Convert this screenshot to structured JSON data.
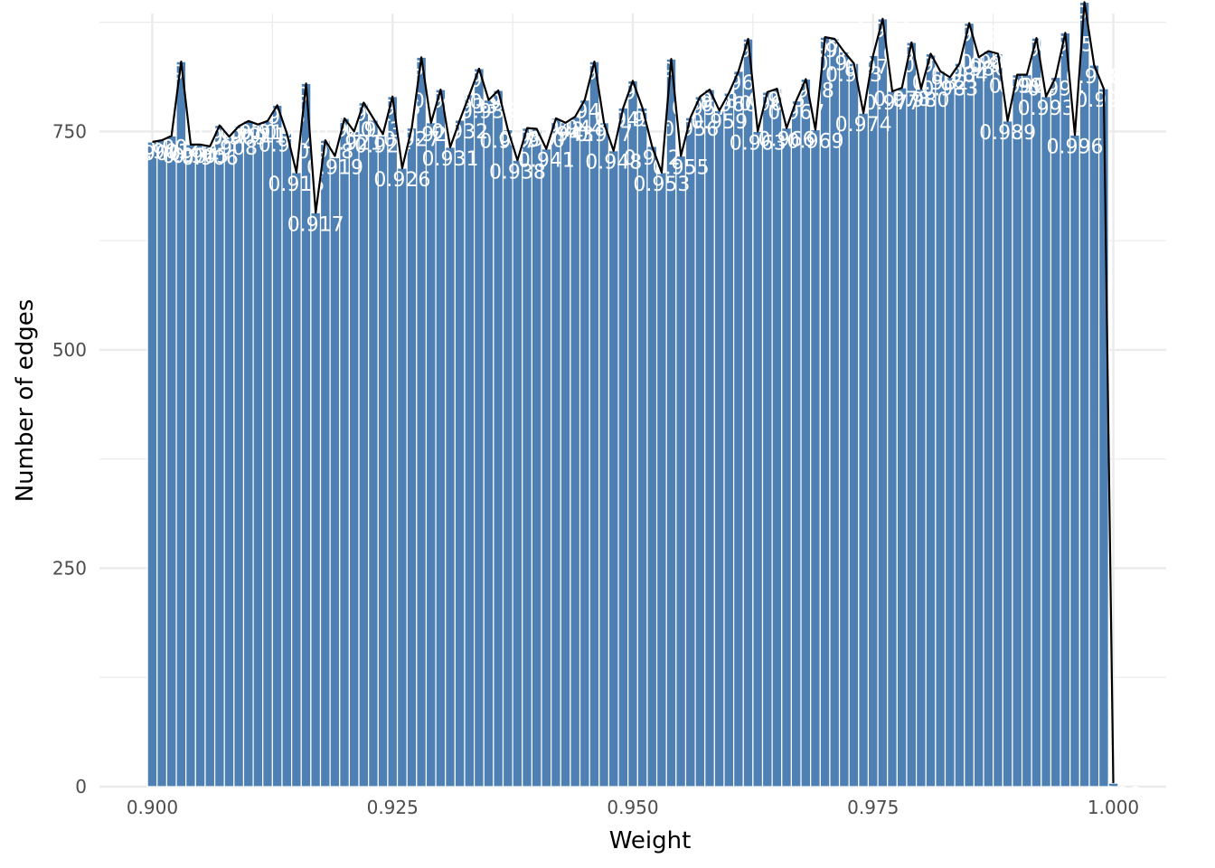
{
  "chart_data": {
    "type": "bar",
    "title": "",
    "xlabel": "Weight",
    "ylabel": "Number of edges",
    "xlim": [
      0.8945,
      1.0055
    ],
    "ylim": [
      0,
      885
    ],
    "grid": true,
    "legend": "none",
    "bar_color": "#4e80b4",
    "line_color": "#000000",
    "x_ticks": [
      0.9,
      0.925,
      0.95,
      0.975,
      1.0
    ],
    "x_tick_labels": [
      "0.900",
      "0.925",
      "0.950",
      "0.975",
      "1.000"
    ],
    "y_ticks": [
      0,
      250,
      500,
      750
    ],
    "y_tick_labels": [
      "0",
      "250",
      "500",
      "750"
    ],
    "bin_width": 0.0005,
    "x": [
      0.9,
      0.901,
      0.902,
      0.903,
      0.904,
      0.905,
      0.906,
      0.907,
      0.908,
      0.909,
      0.91,
      0.911,
      0.912,
      0.913,
      0.914,
      0.915,
      0.916,
      0.917,
      0.918,
      0.919,
      0.92,
      0.921,
      0.922,
      0.923,
      0.924,
      0.925,
      0.926,
      0.927,
      0.928,
      0.929,
      0.93,
      0.931,
      0.932,
      0.933,
      0.934,
      0.935,
      0.936,
      0.937,
      0.938,
      0.939,
      0.94,
      0.941,
      0.942,
      0.943,
      0.944,
      0.945,
      0.946,
      0.947,
      0.948,
      0.949,
      0.95,
      0.951,
      0.952,
      0.953,
      0.954,
      0.955,
      0.956,
      0.957,
      0.958,
      0.959,
      0.96,
      0.961,
      0.962,
      0.963,
      0.964,
      0.965,
      0.966,
      0.967,
      0.968,
      0.969,
      0.97,
      0.971,
      0.972,
      0.973,
      0.974,
      0.975,
      0.976,
      0.977,
      0.978,
      0.979,
      0.98,
      0.981,
      0.982,
      0.983,
      0.984,
      0.985,
      0.986,
      0.987,
      0.988,
      0.989,
      0.99,
      0.991,
      0.992,
      0.993,
      0.994,
      0.995,
      0.996,
      0.997,
      0.998,
      0.999,
      1.0
    ],
    "values": [
      738,
      740,
      745,
      830,
      735,
      735,
      733,
      757,
      744,
      756,
      762,
      758,
      762,
      780,
      748,
      703,
      805,
      657,
      740,
      722,
      765,
      750,
      783,
      765,
      747,
      790,
      708,
      754,
      835,
      760,
      798,
      732,
      763,
      792,
      822,
      786,
      797,
      752,
      717,
      754,
      753,
      730,
      765,
      760,
      767,
      786,
      830,
      760,
      728,
      777,
      808,
      777,
      733,
      703,
      833,
      722,
      766,
      790,
      798,
      774,
      794,
      819,
      856,
      750,
      795,
      799,
      754,
      785,
      810,
      752,
      858,
      856,
      841,
      828,
      771,
      837,
      879,
      796,
      800,
      852,
      799,
      839,
      819,
      812,
      828,
      874,
      835,
      842,
      839,
      762,
      815,
      815,
      857,
      790,
      812,
      863,
      746,
      898,
      826,
      799,
      4
    ],
    "labels": [
      "0.900",
      "0.901",
      "0.902",
      "0.903",
      "0.904",
      "0.905",
      "0.906",
      "0.907",
      "0.908",
      "0.909",
      "0.910",
      "0.911",
      "0.912",
      "0.913",
      "0.914",
      "0.915",
      "0.916",
      "0.917",
      "0.918",
      "0.919",
      "0.920",
      "0.921",
      "0.922",
      "0.923",
      "0.924",
      "0.925",
      "0.926",
      "0.927",
      "0.928",
      "0.929",
      "0.930",
      "0.931",
      "0.932",
      "0.933",
      "0.934",
      "0.935",
      "0.936",
      "0.937",
      "0.938",
      "0.939",
      "0.940",
      "0.941",
      "0.942",
      "0.943",
      "0.944",
      "0.945",
      "0.946",
      "0.947",
      "0.948",
      "0.949",
      "0.950",
      "0.951",
      "0.952",
      "0.953",
      "0.954",
      "0.955",
      "0.956",
      "0.957",
      "0.958",
      "0.959",
      "0.960",
      "0.961",
      "0.962",
      "0.963",
      "0.964",
      "0.965",
      "0.966",
      "0.967",
      "0.968",
      "0.969",
      "0.970",
      "0.971",
      "0.972",
      "0.973",
      "0.974",
      "0.975",
      "0.976",
      "0.977",
      "0.978",
      "0.979",
      "0.980",
      "0.981",
      "0.982",
      "0.983",
      "0.984",
      "0.985",
      "0.986",
      "0.987",
      "0.988",
      "0.989",
      "0.990",
      "0.991",
      "0.992",
      "0.993",
      "0.994",
      "0.995",
      "0.996",
      "0.997",
      "0.998",
      "0.999",
      "1.000"
    ]
  }
}
